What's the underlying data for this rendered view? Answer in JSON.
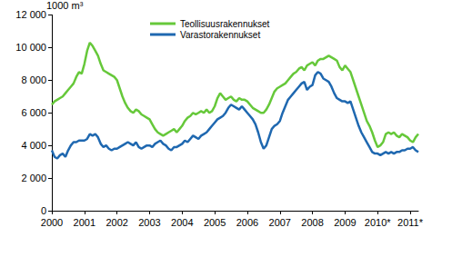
{
  "chart_data": {
    "type": "line",
    "y_label": "1000 m³",
    "categories": [
      "2000",
      null,
      null,
      null,
      null,
      null,
      null,
      null,
      null,
      null,
      null,
      null,
      "2001",
      null,
      null,
      null,
      null,
      null,
      null,
      null,
      null,
      null,
      null,
      null,
      "2002",
      null,
      null,
      null,
      null,
      null,
      null,
      null,
      null,
      null,
      null,
      null,
      "2003",
      null,
      null,
      null,
      null,
      null,
      null,
      null,
      null,
      null,
      null,
      null,
      "2004",
      null,
      null,
      null,
      null,
      null,
      null,
      null,
      null,
      null,
      null,
      null,
      "2005",
      null,
      null,
      null,
      null,
      null,
      null,
      null,
      null,
      null,
      null,
      null,
      "2006",
      null,
      null,
      null,
      null,
      null,
      null,
      null,
      null,
      null,
      null,
      null,
      "2007",
      null,
      null,
      null,
      null,
      null,
      null,
      null,
      null,
      null,
      null,
      null,
      "2008",
      null,
      null,
      null,
      null,
      null,
      null,
      null,
      null,
      null,
      null,
      null,
      "2009",
      null,
      null,
      null,
      null,
      null,
      null,
      null,
      null,
      null,
      null,
      null,
      "2010*",
      null,
      null,
      null,
      null,
      null,
      null,
      null,
      null,
      null,
      null,
      null,
      "2011*",
      null,
      null,
      null
    ],
    "series": [
      {
        "name": "Teollisuusrakennukset",
        "color": "#66c83a",
        "values": [
          6500,
          6700,
          6800,
          6900,
          7000,
          7200,
          7400,
          7600,
          7800,
          8200,
          8500,
          8400,
          9000,
          9800,
          10300,
          10100,
          9800,
          9500,
          9000,
          8600,
          8500,
          8400,
          8300,
          8200,
          8000,
          7500,
          7000,
          6600,
          6300,
          6100,
          6000,
          6200,
          6100,
          5900,
          5800,
          5700,
          5600,
          5300,
          5000,
          4800,
          4700,
          4600,
          4700,
          4800,
          4900,
          5000,
          4800,
          5000,
          5200,
          5500,
          5700,
          5800,
          6000,
          5900,
          6000,
          6100,
          6000,
          6200,
          6000,
          6100,
          6400,
          6900,
          7200,
          7000,
          6800,
          6900,
          7000,
          6800,
          6700,
          6900,
          6800,
          6800,
          6700,
          6500,
          6300,
          6200,
          6100,
          6000,
          6000,
          6200,
          6500,
          6900,
          7300,
          7500,
          7600,
          7700,
          7800,
          8000,
          8200,
          8400,
          8500,
          8700,
          8800,
          8600,
          8900,
          9000,
          9100,
          8900,
          9200,
          9300,
          9300,
          9400,
          9500,
          9400,
          9300,
          9200,
          8800,
          8600,
          8900,
          8700,
          8500,
          8000,
          7500,
          7000,
          6500,
          6000,
          5500,
          5200,
          4800,
          4300,
          3900,
          4000,
          4200,
          4700,
          4800,
          4700,
          4800,
          4600,
          4500,
          4700,
          4600,
          4500,
          4300,
          4200,
          4500,
          4700
        ]
      },
      {
        "name": "Varastorakennukset",
        "color": "#1f68b0",
        "values": [
          3700,
          3300,
          3200,
          3400,
          3500,
          3300,
          3700,
          4000,
          4200,
          4200,
          4300,
          4300,
          4300,
          4400,
          4700,
          4600,
          4700,
          4500,
          4100,
          3900,
          4000,
          3800,
          3700,
          3800,
          3800,
          3900,
          4000,
          4100,
          4200,
          4100,
          4000,
          4200,
          3900,
          3800,
          3900,
          4000,
          4000,
          3900,
          4100,
          4200,
          4300,
          4100,
          4000,
          3800,
          3700,
          3900,
          3900,
          4000,
          4100,
          4300,
          4200,
          4400,
          4600,
          4500,
          4400,
          4600,
          4700,
          4800,
          5000,
          5200,
          5400,
          5600,
          5700,
          5800,
          6000,
          6300,
          6500,
          6400,
          6300,
          6200,
          6400,
          6200,
          6000,
          5800,
          5600,
          5300,
          4800,
          4200,
          3800,
          4000,
          4500,
          5000,
          5200,
          5300,
          5500,
          6000,
          6400,
          6800,
          7000,
          7200,
          7400,
          7600,
          7800,
          7900,
          7400,
          7600,
          7700,
          8300,
          8500,
          8400,
          8100,
          8000,
          7900,
          7600,
          7200,
          6900,
          6800,
          6700,
          6700,
          6600,
          6700,
          6200,
          5700,
          5200,
          4800,
          4500,
          4200,
          3900,
          3600,
          3500,
          3500,
          3400,
          3500,
          3600,
          3500,
          3600,
          3500,
          3600,
          3600,
          3700,
          3700,
          3800,
          3800,
          3900,
          3700,
          3600
        ]
      }
    ],
    "ylim": [
      0,
      12000
    ],
    "yticks": [
      0,
      {
        "value": 2000,
        "label": "2 000"
      },
      {
        "value": 4000,
        "label": "4 000"
      },
      {
        "value": 6000,
        "label": "6 000"
      },
      {
        "value": 8000,
        "label": "8 000"
      },
      {
        "value": 10000,
        "label": "10 000"
      },
      {
        "value": 12000,
        "label": "12 000"
      }
    ],
    "grid": false,
    "legend": "top"
  }
}
